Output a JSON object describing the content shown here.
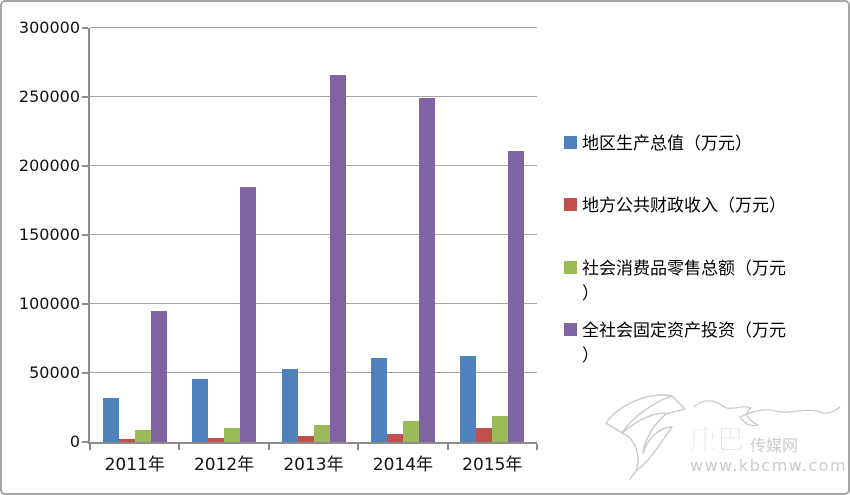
{
  "chart_data": {
    "type": "bar",
    "title": "",
    "xlabel": "",
    "ylabel": "",
    "categories": [
      "2011年",
      "2012年",
      "2013年",
      "2014年",
      "2015年"
    ],
    "series": [
      {
        "name": "地区生产总值（万元）",
        "color": "#4F81BD",
        "values": [
          32000,
          46000,
          53000,
          61000,
          62000
        ]
      },
      {
        "name": "地方公共财政收入（万元）",
        "color": "#C0504D",
        "values": [
          2000,
          3000,
          4000,
          6000,
          10000
        ]
      },
      {
        "name": "社会消费品零售总额（万元）",
        "color": "#9BBB59",
        "values": [
          9000,
          10000,
          12000,
          15000,
          19000
        ]
      },
      {
        "name": "全社会固定资产投资（万元）",
        "color": "#8064A2",
        "values": [
          95000,
          185000,
          266000,
          249000,
          211000
        ]
      }
    ],
    "ylim": [
      0,
      300000
    ],
    "yticks": [
      0,
      50000,
      100000,
      150000,
      200000,
      250000,
      300000
    ],
    "grid": "horizontal",
    "legend_position": "right"
  },
  "watermark": {
    "name_primary": "康巴",
    "name_secondary": "传媒网",
    "site_url": "www.kbcmw.com"
  },
  "colors": {
    "axis": "#8c8c8c",
    "gridline": "#a6a6a6",
    "label_text": "#111111",
    "border": "#a6a6a6",
    "watermark": "#c8c8c8"
  }
}
